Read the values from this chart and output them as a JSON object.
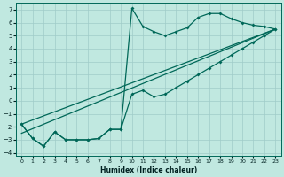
{
  "xlabel": "Humidex (Indice chaleur)",
  "background_color": "#c0e8e0",
  "grid_color": "#a0ccc8",
  "line_color": "#006858",
  "xlim": [
    -0.5,
    23.5
  ],
  "ylim": [
    -4.2,
    7.5
  ],
  "xticks": [
    0,
    1,
    2,
    3,
    4,
    5,
    6,
    7,
    8,
    9,
    10,
    11,
    12,
    13,
    14,
    15,
    16,
    17,
    18,
    19,
    20,
    21,
    22,
    23
  ],
  "yticks": [
    -4,
    -3,
    -2,
    -1,
    0,
    1,
    2,
    3,
    4,
    5,
    6,
    7
  ],
  "curve_upper_x": [
    0,
    1,
    2,
    3,
    4,
    5,
    6,
    7,
    8,
    9,
    10,
    11,
    12,
    13,
    14,
    15,
    16,
    17,
    18,
    19,
    20,
    21,
    22,
    23
  ],
  "curve_upper_y": [
    -1.8,
    -2.9,
    -3.5,
    -2.4,
    -3.0,
    -3.0,
    -3.0,
    -2.9,
    -2.2,
    -2.2,
    7.1,
    5.7,
    5.3,
    5.0,
    5.3,
    5.6,
    6.4,
    6.7,
    6.7,
    6.3,
    6.0,
    5.8,
    5.7,
    5.5
  ],
  "curve_lower_x": [
    0,
    1,
    2,
    3,
    4,
    5,
    6,
    7,
    8,
    9,
    10,
    11,
    12,
    13,
    14,
    15,
    16,
    17,
    18,
    19,
    20,
    21,
    22,
    23
  ],
  "curve_lower_y": [
    -1.8,
    -2.9,
    -3.5,
    -2.4,
    -3.0,
    -3.0,
    -3.0,
    -2.9,
    -2.2,
    -2.2,
    0.5,
    0.8,
    0.3,
    0.5,
    1.0,
    1.5,
    2.0,
    2.5,
    3.0,
    3.5,
    4.0,
    4.5,
    5.0,
    5.5
  ],
  "line1_x": [
    0,
    23
  ],
  "line1_y": [
    -1.8,
    5.5
  ],
  "line2_x": [
    0,
    23
  ],
  "line2_y": [
    -2.5,
    5.5
  ]
}
